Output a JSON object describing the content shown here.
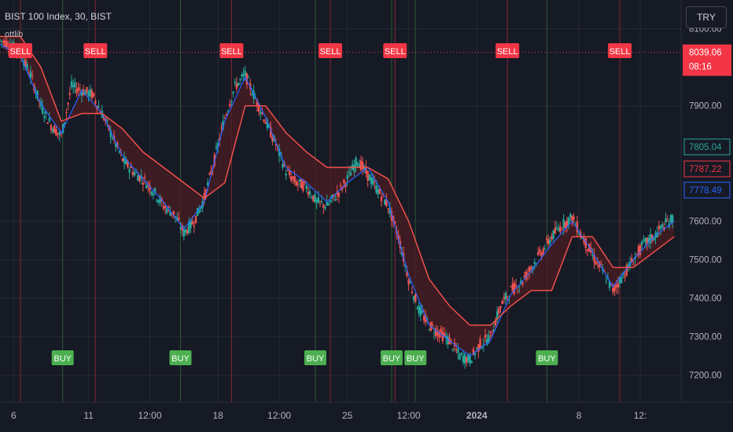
{
  "header": {
    "symbol": "BIST 100 Index, 30, BIST",
    "indicator": "ottlib"
  },
  "currency": "TRY",
  "colors": {
    "background": "#161a25",
    "grid": "#252a36",
    "ott_line": "#f0504a",
    "fast_line": "#2962ff",
    "fill": "#4a1c22",
    "fill_up": "#1f3d2a",
    "sell": "#f23645",
    "buy": "#4caf50",
    "candle_up": "#26a69a",
    "candle_down": "#ef5350"
  },
  "chart_data": {
    "type": "line",
    "title": "BIST 100 Index, 30, BIST",
    "y_range": [
      7130,
      8175
    ],
    "x_range": [
      0,
      100
    ],
    "y_ticks": [
      "8100.00",
      "7900.00",
      "7600.00",
      "7500.00",
      "7400.00",
      "7300.00",
      "7200.00"
    ],
    "y_tick_values": [
      8100,
      7900,
      7600,
      7500,
      7400,
      7300,
      7200
    ],
    "x_ticks": [
      {
        "label": "6",
        "x": 2,
        "bold": false
      },
      {
        "label": "11",
        "x": 13,
        "bold": false
      },
      {
        "label": "12:00",
        "x": 22,
        "bold": false
      },
      {
        "label": "18",
        "x": 32,
        "bold": false
      },
      {
        "label": "12:00",
        "x": 41,
        "bold": false
      },
      {
        "label": "25",
        "x": 51,
        "bold": false
      },
      {
        "label": "12:00",
        "x": 60,
        "bold": false
      },
      {
        "label": "2024",
        "x": 70,
        "bold": true
      },
      {
        "label": "8",
        "x": 85,
        "bold": false
      },
      {
        "label": "12:",
        "x": 94,
        "bold": false
      }
    ],
    "price_labels": [
      {
        "value": "8039.06",
        "sub": "08:16",
        "y": 8039.06,
        "style": "last"
      },
      {
        "value": "7805.04",
        "y": 7805.04,
        "style": "green"
      },
      {
        "value": "7787.22",
        "y": 7787.22,
        "style": "red"
      },
      {
        "value": "7778.49",
        "y": 7778.49,
        "style": "blue"
      }
    ],
    "price": {
      "x": [
        0,
        1.5,
        3,
        4.5,
        6,
        7.5,
        9,
        10.5,
        12,
        13.5,
        15,
        16.5,
        18,
        19.5,
        21,
        22.5,
        24,
        25.5,
        27,
        28.5,
        30,
        31.5,
        33,
        34.5,
        36,
        37.5,
        39,
        40.5,
        42,
        43.5,
        45,
        46.5,
        48,
        49.5,
        51,
        52.5,
        54,
        55.5,
        57,
        58.5,
        60,
        61.5,
        63,
        64.5,
        66,
        67.5,
        69,
        70.5,
        72,
        73.5,
        75,
        76.5,
        78,
        79.5,
        81,
        82.5,
        84,
        85.5,
        87,
        88.5,
        90,
        91.5,
        93,
        94.5,
        96,
        97.5,
        99
      ],
      "y": [
        8070,
        8060,
        8035,
        7980,
        7900,
        7850,
        7820,
        7950,
        7940,
        7930,
        7880,
        7820,
        7760,
        7730,
        7710,
        7680,
        7640,
        7620,
        7570,
        7600,
        7660,
        7760,
        7870,
        7950,
        7980,
        7920,
        7860,
        7800,
        7730,
        7700,
        7690,
        7650,
        7640,
        7670,
        7710,
        7760,
        7720,
        7680,
        7640,
        7560,
        7450,
        7370,
        7330,
        7310,
        7290,
        7250,
        7240,
        7280,
        7300,
        7380,
        7420,
        7440,
        7480,
        7520,
        7560,
        7590,
        7610,
        7560,
        7510,
        7470,
        7420,
        7460,
        7500,
        7540,
        7560,
        7590,
        7610
      ]
    },
    "fast_line": {
      "x": [
        0,
        3,
        6,
        9,
        12,
        15,
        18,
        21,
        24,
        27,
        30,
        33,
        36,
        39,
        42,
        45,
        48,
        51,
        54,
        57,
        60,
        63,
        66,
        69,
        72,
        75,
        78,
        81,
        84,
        87,
        90,
        93,
        96,
        99
      ],
      "y": [
        8060,
        8030,
        7905,
        7830,
        7940,
        7880,
        7770,
        7710,
        7650,
        7580,
        7650,
        7860,
        7975,
        7870,
        7740,
        7700,
        7650,
        7700,
        7740,
        7650,
        7460,
        7330,
        7290,
        7250,
        7290,
        7410,
        7470,
        7540,
        7600,
        7520,
        7430,
        7500,
        7560,
        7600
      ]
    },
    "ott_line": {
      "x": [
        0,
        3,
        6,
        9,
        12,
        15,
        18,
        21,
        24,
        27,
        30,
        33,
        36,
        39,
        42,
        45,
        48,
        51,
        54,
        57,
        60,
        63,
        66,
        69,
        72,
        75,
        78,
        81,
        84,
        87,
        90,
        93,
        96,
        99
      ],
      "y": [
        8080,
        8080,
        8000,
        7860,
        7880,
        7880,
        7840,
        7780,
        7740,
        7700,
        7660,
        7700,
        7900,
        7900,
        7830,
        7780,
        7740,
        7740,
        7740,
        7710,
        7600,
        7450,
        7380,
        7330,
        7330,
        7380,
        7420,
        7420,
        7560,
        7560,
        7480,
        7480,
        7520,
        7560
      ]
    },
    "signals": [
      {
        "type": "SELL",
        "x": 3
      },
      {
        "type": "SELL",
        "x": 14
      },
      {
        "type": "SELL",
        "x": 34
      },
      {
        "type": "SELL",
        "x": 48.5
      },
      {
        "type": "SELL",
        "x": 58
      },
      {
        "type": "SELL",
        "x": 74.5
      },
      {
        "type": "SELL",
        "x": 91
      },
      {
        "type": "BUY",
        "x": 9.2
      },
      {
        "type": "BUY",
        "x": 26.5
      },
      {
        "type": "BUY",
        "x": 46.3
      },
      {
        "type": "BUY",
        "x": 57.5
      },
      {
        "type": "BUY",
        "x": 61
      },
      {
        "type": "BUY",
        "x": 80.3
      }
    ]
  }
}
